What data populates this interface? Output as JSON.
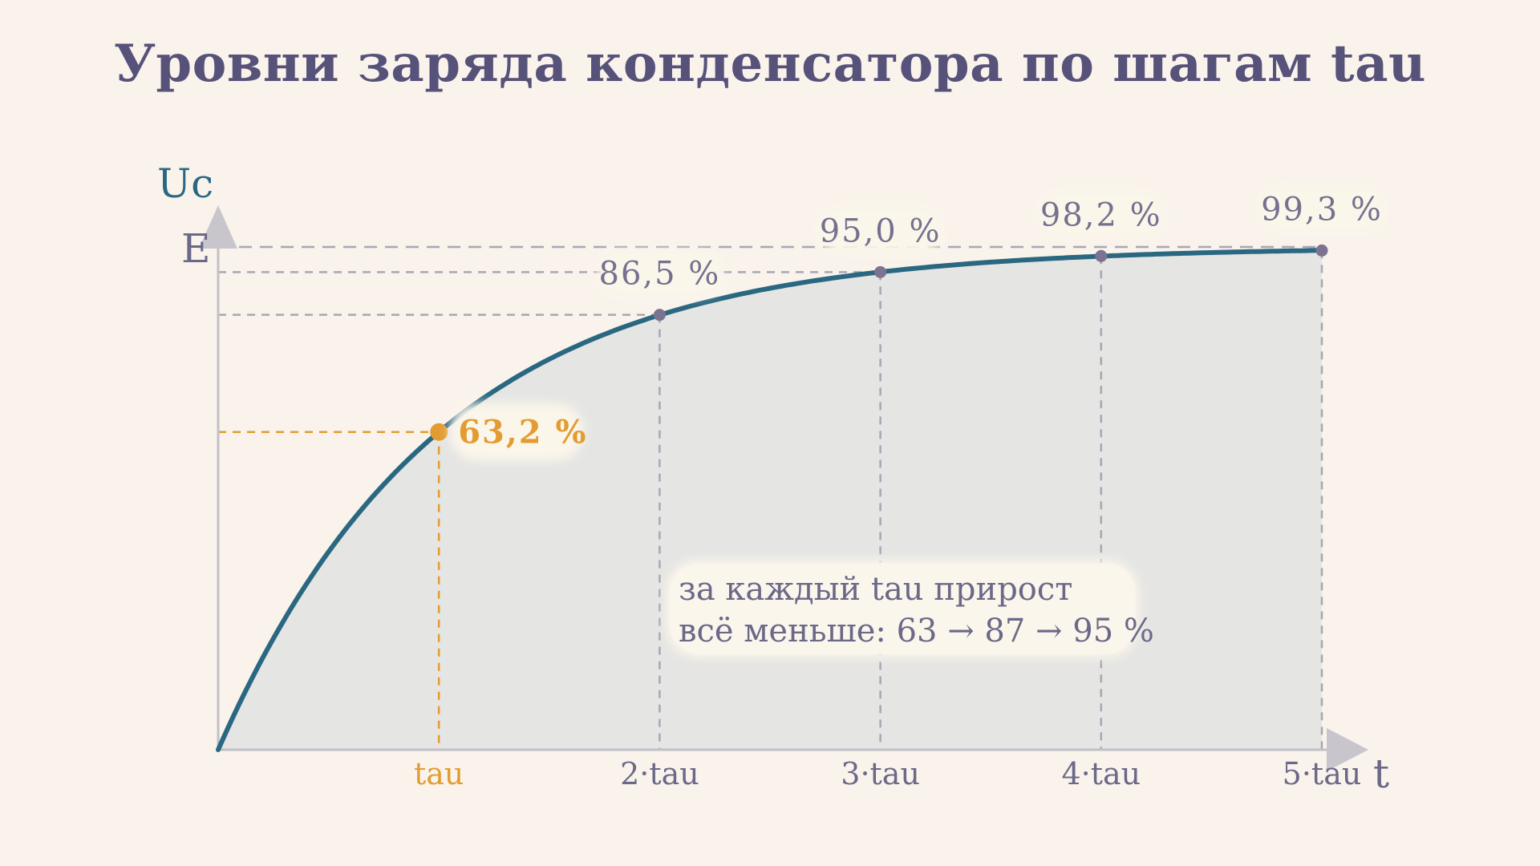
{
  "title": "Уровни заряда конденсатора по шагам tau",
  "colors": {
    "background": "#f9f3ec",
    "curve": "#2a6882",
    "fill": "#e5e5e3",
    "highlight": "#e39c32",
    "text": "#57527a",
    "guide": "#a8a6b4",
    "point": "#7c7292"
  },
  "chart_data": {
    "type": "line",
    "formula_shape": "exponential charge 1 - e^(-t/tau)",
    "x_label": "t",
    "y_label": "Uc",
    "y_max_label": "E",
    "xlim": [
      0,
      5
    ],
    "ylim": [
      0,
      100
    ],
    "grid": false,
    "x_ticks": [
      {
        "x": 1,
        "label": "tau"
      },
      {
        "x": 2,
        "label": "2·tau"
      },
      {
        "x": 3,
        "label": "3·tau"
      },
      {
        "x": 4,
        "label": "4·tau"
      },
      {
        "x": 5,
        "label": "5·tau"
      }
    ],
    "points": [
      {
        "x": 1,
        "y": 63.2,
        "label": "63,2 %",
        "highlight": true
      },
      {
        "x": 2,
        "y": 86.5,
        "label": "86,5 %",
        "highlight": false
      },
      {
        "x": 3,
        "y": 95.0,
        "label": "95,0 %",
        "highlight": false
      },
      {
        "x": 4,
        "y": 98.2,
        "label": "98,2 %",
        "highlight": false
      },
      {
        "x": 5,
        "y": 99.3,
        "label": "99,3 %",
        "highlight": false
      }
    ],
    "annotation": {
      "lines": [
        "за каждый tau прирост",
        "всё меньше: 63 → 87 → 95 %"
      ]
    }
  }
}
